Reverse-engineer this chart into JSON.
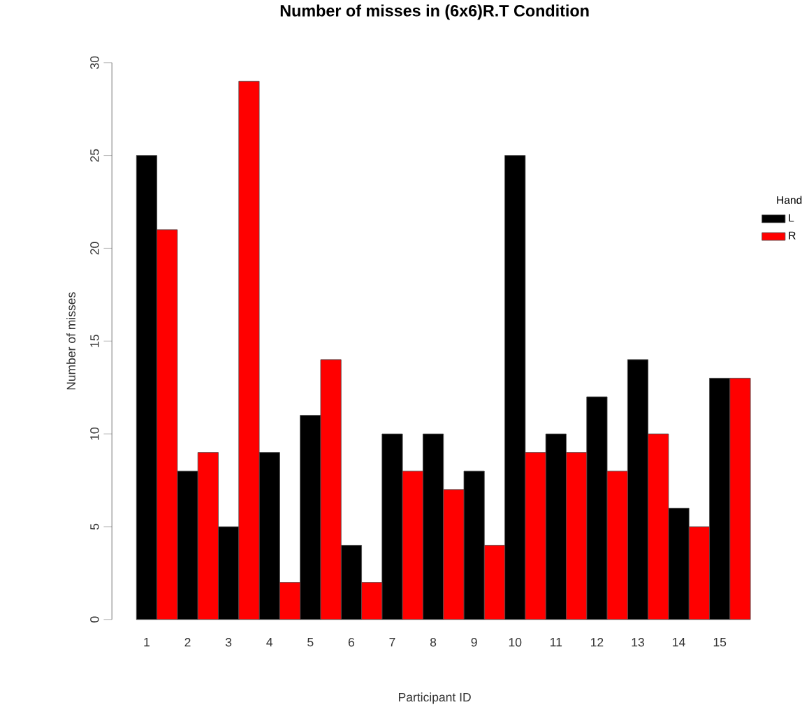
{
  "chart_data": {
    "type": "bar",
    "title": "Number of misses in (6x6)R.T Condition",
    "xlabel": "Participant ID",
    "ylabel": "Number of misses",
    "legend_title": "Hand",
    "categories": [
      "1",
      "2",
      "3",
      "4",
      "5",
      "6",
      "7",
      "8",
      "9",
      "10",
      "11",
      "12",
      "13",
      "14",
      "15"
    ],
    "series": [
      {
        "name": "L",
        "color": "#000000",
        "values": [
          25,
          8,
          5,
          9,
          11,
          4,
          10,
          10,
          8,
          25,
          10,
          12,
          14,
          6,
          13
        ]
      },
      {
        "name": "R",
        "color": "#ff0000",
        "values": [
          21,
          9,
          29,
          2,
          14,
          2,
          8,
          7,
          4,
          9,
          9,
          8,
          10,
          5,
          13
        ]
      }
    ],
    "ylim": [
      0,
      30
    ],
    "yticks": [
      0,
      5,
      10,
      15,
      20,
      25,
      30
    ],
    "grid": false,
    "legend": "right"
  }
}
